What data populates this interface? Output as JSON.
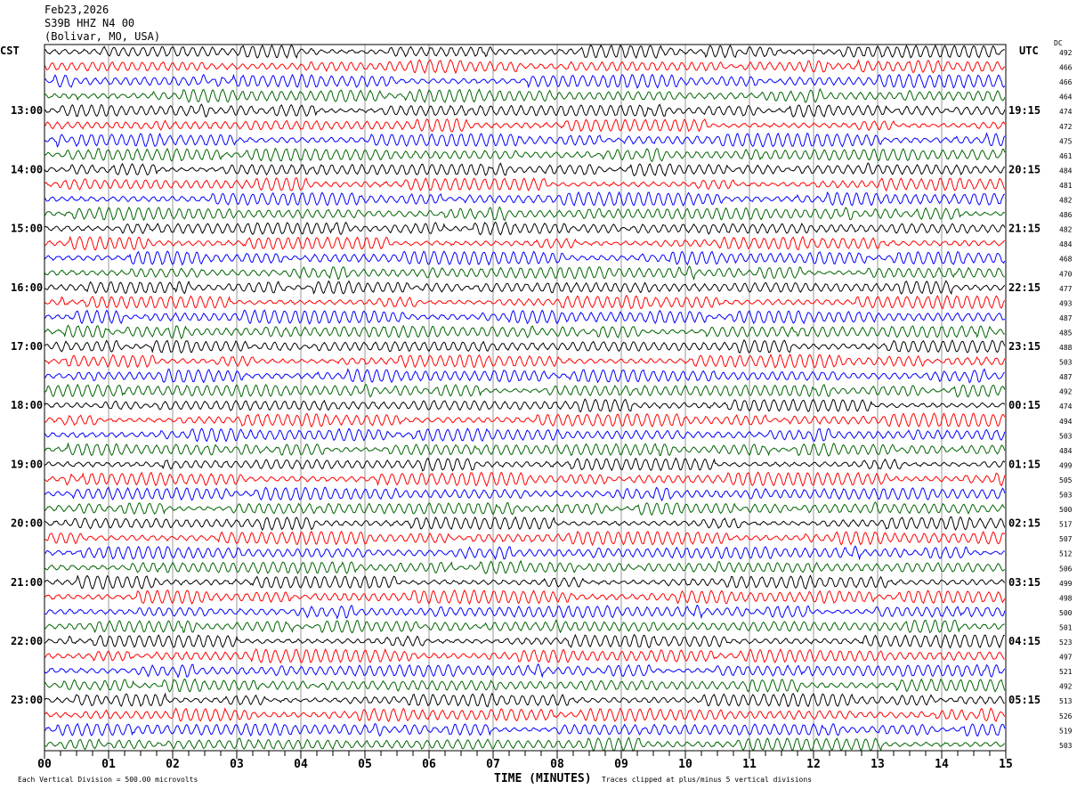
{
  "header": {
    "date": "Feb23,2026",
    "station": "S39B HHZ N4 00",
    "location": "(Bolivar, MO, USA)"
  },
  "chart_data": {
    "type": "line",
    "left_timezone": "CST",
    "right_timezone": "UTC",
    "dc_label": "DC",
    "left_hour_labels": [
      "13:00",
      "14:00",
      "15:00",
      "16:00",
      "17:00",
      "18:00",
      "19:00",
      "20:00",
      "21:00",
      "22:00",
      "23:00"
    ],
    "right_hour_labels": [
      "19:15",
      "20:15",
      "21:15",
      "22:15",
      "23:15",
      "00:15",
      "01:15",
      "02:15",
      "03:15",
      "04:15",
      "05:15"
    ],
    "trace_colors": [
      "#000000",
      "#ff0000",
      "#0000ff",
      "#006400"
    ],
    "dc_offsets": [
      492,
      466,
      466,
      464,
      474,
      472,
      475,
      461,
      484,
      481,
      482,
      486,
      482,
      484,
      468,
      470,
      477,
      493,
      487,
      485,
      488,
      503,
      487,
      492,
      474,
      494,
      503,
      484,
      499,
      505,
      503,
      500,
      517,
      507,
      512,
      506,
      499,
      498,
      500,
      501,
      523,
      497,
      521,
      492,
      513,
      526,
      519,
      503
    ],
    "x_ticks": [
      "00",
      "01",
      "02",
      "03",
      "04",
      "05",
      "06",
      "07",
      "08",
      "09",
      "10",
      "11",
      "12",
      "13",
      "14",
      "15"
    ],
    "xlabel": "TIME (MINUTES)",
    "xlim": [
      0,
      15
    ],
    "scale_note": "Each Vertical Division =  500.00 microvolts",
    "clip_note": "Traces clipped at plus/minus 5 vertical divisions"
  }
}
